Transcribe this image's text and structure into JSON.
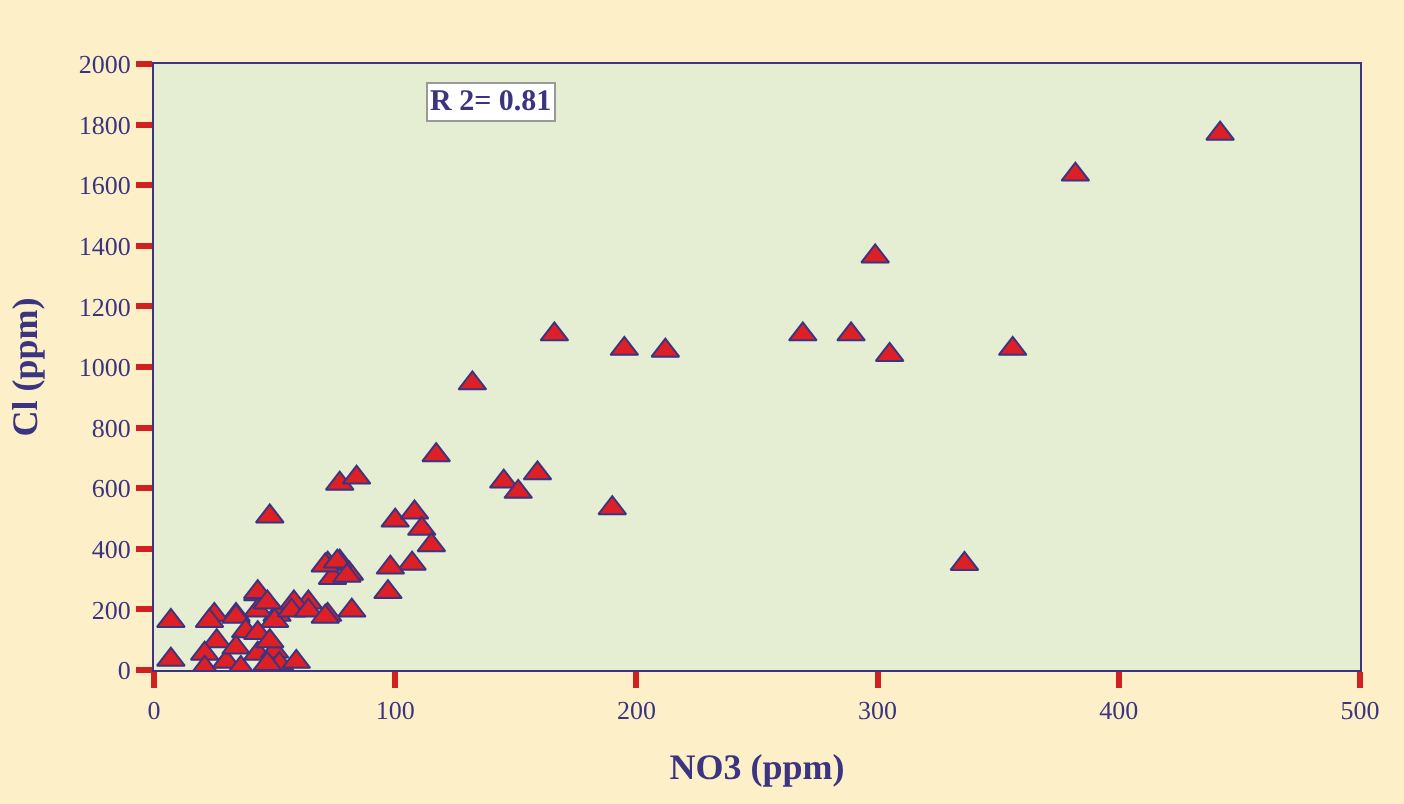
{
  "chart_data": {
    "type": "scatter",
    "xlabel": "NO3 (ppm)",
    "ylabel": "Cl (ppm)",
    "annotations": [
      "R 2= 0.81"
    ],
    "xlim": [
      0,
      500
    ],
    "xticks": [
      0,
      100,
      200,
      300,
      400,
      500
    ],
    "ylim": [
      0,
      2000
    ],
    "yticks": [
      0,
      200,
      400,
      600,
      800,
      1000,
      1200,
      1400,
      1600,
      1800,
      2000
    ],
    "grid": false,
    "marker": "triangle",
    "series": [
      {
        "color": "#dd1f26",
        "x": [
          442,
          382,
          299,
          356,
          305,
          289,
          269,
          212,
          195,
          166,
          132,
          117,
          190,
          336,
          145,
          159,
          151,
          48,
          77,
          84,
          100,
          108,
          111,
          115,
          107,
          98,
          97,
          72,
          77,
          81,
          74,
          82,
          72,
          64,
          58,
          51,
          43,
          43,
          34,
          25,
          7,
          7,
          23,
          26,
          21,
          21,
          34,
          38,
          43,
          47,
          50,
          57,
          64,
          71,
          30,
          36,
          43,
          50,
          52,
          59,
          47,
          34,
          43,
          48,
          71,
          76,
          80
        ],
        "values": [
          1770,
          1635,
          1365,
          1060,
          1040,
          1108,
          1108,
          1054,
          1060,
          1108,
          946,
          709,
          534,
          350,
          622,
          649,
          588,
          507,
          615,
          635,
          493,
          520,
          466,
          412,
          351,
          338,
          257,
          351,
          358,
          318,
          304,
          196,
          182,
          223,
          223,
          182,
          250,
          196,
          182,
          182,
          162,
          34,
          162,
          95,
          54,
          7,
          176,
          128,
          257,
          223,
          162,
          196,
          196,
          176,
          27,
          7,
          54,
          61,
          20,
          27,
          20,
          74,
          122,
          95,
          345,
          358,
          311
        ]
      }
    ]
  }
}
